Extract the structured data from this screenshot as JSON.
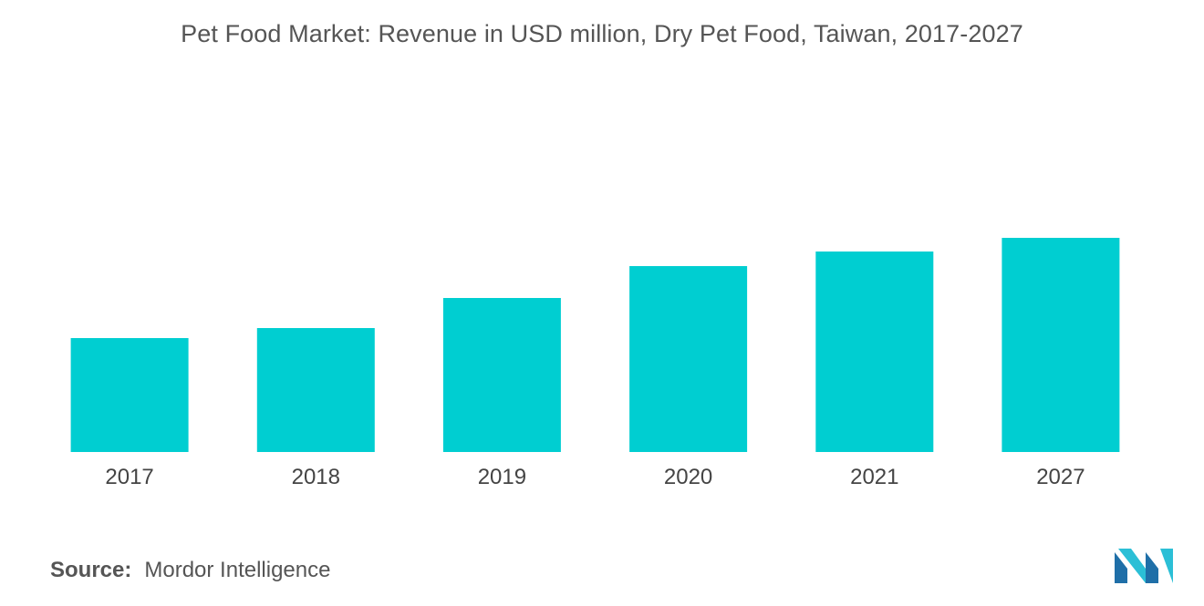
{
  "title": "Pet Food Market: Revenue in USD million, Dry Pet Food, Taiwan, 2017-2027",
  "source": {
    "label": "Source:",
    "value": "Mordor Intelligence"
  },
  "logo": {
    "icon": "mordor-intelligence-logo",
    "colors": [
      "#1f6fa8",
      "#2bbfd6"
    ]
  },
  "colors": {
    "bar": "#00ced1",
    "title_text": "#555555",
    "tick_text": "#444444"
  },
  "chart_data": {
    "type": "bar",
    "title": "Pet Food Market: Revenue in USD million, Dry Pet Food, Taiwan, 2017-2027",
    "categories": [
      "2017",
      "2018",
      "2019",
      "2020",
      "2021",
      "2027"
    ],
    "values": [
      125,
      136,
      169,
      204,
      220,
      235
    ],
    "xlabel": "",
    "ylabel": "",
    "ylim": [
      0,
      400
    ],
    "grid": false,
    "legend": "none",
    "value_axis_shown": false
  }
}
